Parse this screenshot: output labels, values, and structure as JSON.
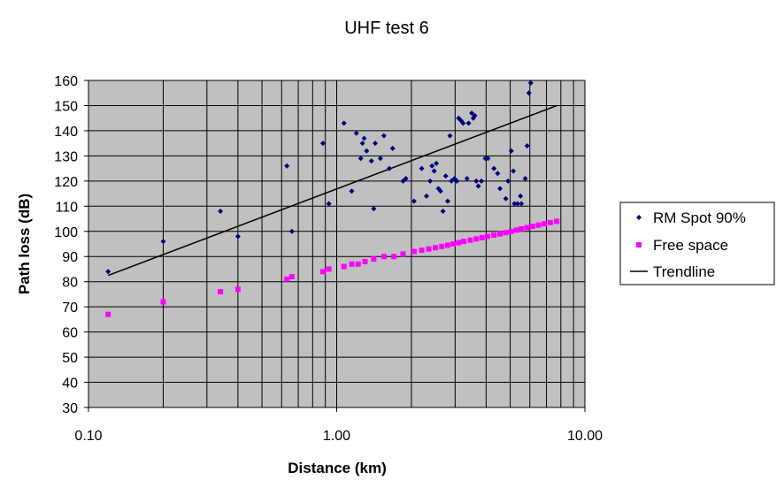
{
  "chart_data": {
    "type": "scatter",
    "title": "UHF test 6",
    "xlabel": "Distance (km)",
    "ylabel": "Path loss (dB)",
    "x_scale": "log",
    "xlim": [
      0.1,
      10
    ],
    "ylim": [
      30,
      160
    ],
    "x_ticks": [
      "0.10",
      "1.00",
      "10.00"
    ],
    "y_ticks": [
      "30",
      "40",
      "50",
      "60",
      "70",
      "80",
      "90",
      "100",
      "110",
      "120",
      "130",
      "140",
      "150",
      "160"
    ],
    "grid": true,
    "plot_background": "#c0c0c0",
    "legend_position": "right",
    "series": [
      {
        "name": "RM Spot 90%",
        "marker": "diamond",
        "color": "#000080",
        "points": [
          [
            0.12,
            84
          ],
          [
            0.2,
            96
          ],
          [
            0.34,
            108
          ],
          [
            0.4,
            98
          ],
          [
            0.63,
            126
          ],
          [
            0.66,
            100
          ],
          [
            0.88,
            135
          ],
          [
            0.93,
            111
          ],
          [
            1.07,
            143
          ],
          [
            1.15,
            116
          ],
          [
            1.2,
            139
          ],
          [
            1.25,
            129
          ],
          [
            1.27,
            135
          ],
          [
            1.29,
            137
          ],
          [
            1.32,
            132
          ],
          [
            1.38,
            128
          ],
          [
            1.41,
            109
          ],
          [
            1.43,
            135
          ],
          [
            1.5,
            129
          ],
          [
            1.55,
            138
          ],
          [
            1.63,
            125
          ],
          [
            1.68,
            133
          ],
          [
            1.85,
            120
          ],
          [
            1.9,
            121
          ],
          [
            2.05,
            112
          ],
          [
            2.2,
            125
          ],
          [
            2.3,
            114
          ],
          [
            2.38,
            120
          ],
          [
            2.42,
            126
          ],
          [
            2.47,
            124
          ],
          [
            2.52,
            127
          ],
          [
            2.57,
            117
          ],
          [
            2.62,
            116
          ],
          [
            2.68,
            108
          ],
          [
            2.75,
            122
          ],
          [
            2.8,
            112
          ],
          [
            2.86,
            138
          ],
          [
            2.9,
            120
          ],
          [
            2.98,
            121
          ],
          [
            3.05,
            120
          ],
          [
            3.1,
            145
          ],
          [
            3.17,
            144
          ],
          [
            3.23,
            143
          ],
          [
            3.35,
            121
          ],
          [
            3.4,
            143
          ],
          [
            3.5,
            147
          ],
          [
            3.55,
            145
          ],
          [
            3.6,
            146
          ],
          [
            3.65,
            120
          ],
          [
            3.72,
            118
          ],
          [
            3.83,
            120
          ],
          [
            3.97,
            129
          ],
          [
            4.07,
            129
          ],
          [
            4.3,
            125
          ],
          [
            4.45,
            123
          ],
          [
            4.55,
            117
          ],
          [
            4.8,
            113
          ],
          [
            4.9,
            120
          ],
          [
            5.05,
            132
          ],
          [
            5.15,
            124
          ],
          [
            5.2,
            111
          ],
          [
            5.35,
            111
          ],
          [
            5.5,
            114
          ],
          [
            5.55,
            111
          ],
          [
            5.75,
            121
          ],
          [
            5.85,
            134
          ],
          [
            5.95,
            155
          ],
          [
            6.05,
            159
          ]
        ]
      },
      {
        "name": "Free space",
        "marker": "square",
        "color": "#ff00ff",
        "points": [
          [
            0.12,
            67
          ],
          [
            0.2,
            72
          ],
          [
            0.34,
            76
          ],
          [
            0.4,
            77
          ],
          [
            0.63,
            81
          ],
          [
            0.66,
            82
          ],
          [
            0.88,
            84
          ],
          [
            0.93,
            85
          ],
          [
            1.07,
            86
          ],
          [
            1.15,
            87
          ],
          [
            1.22,
            87
          ],
          [
            1.3,
            88
          ],
          [
            1.41,
            89
          ],
          [
            1.55,
            90
          ],
          [
            1.7,
            90
          ],
          [
            1.85,
            91
          ],
          [
            2.05,
            92
          ],
          [
            2.2,
            92.5
          ],
          [
            2.35,
            93
          ],
          [
            2.5,
            93.5
          ],
          [
            2.65,
            94
          ],
          [
            2.8,
            94.5
          ],
          [
            2.95,
            95
          ],
          [
            3.1,
            95.5
          ],
          [
            3.25,
            96
          ],
          [
            3.45,
            96.5
          ],
          [
            3.65,
            97
          ],
          [
            3.85,
            97.5
          ],
          [
            4.05,
            98
          ],
          [
            4.3,
            98.5
          ],
          [
            4.55,
            99
          ],
          [
            4.8,
            99.5
          ],
          [
            5.05,
            100
          ],
          [
            5.3,
            100.5
          ],
          [
            5.55,
            101
          ],
          [
            5.85,
            101.5
          ],
          [
            6.15,
            102
          ],
          [
            6.5,
            102.5
          ],
          [
            6.85,
            103
          ],
          [
            7.25,
            103.5
          ],
          [
            7.7,
            104
          ]
        ]
      },
      {
        "name": "Trendline",
        "type": "line",
        "color": "#000000",
        "points": [
          [
            0.12,
            82.5
          ],
          [
            7.7,
            150
          ]
        ]
      }
    ]
  }
}
